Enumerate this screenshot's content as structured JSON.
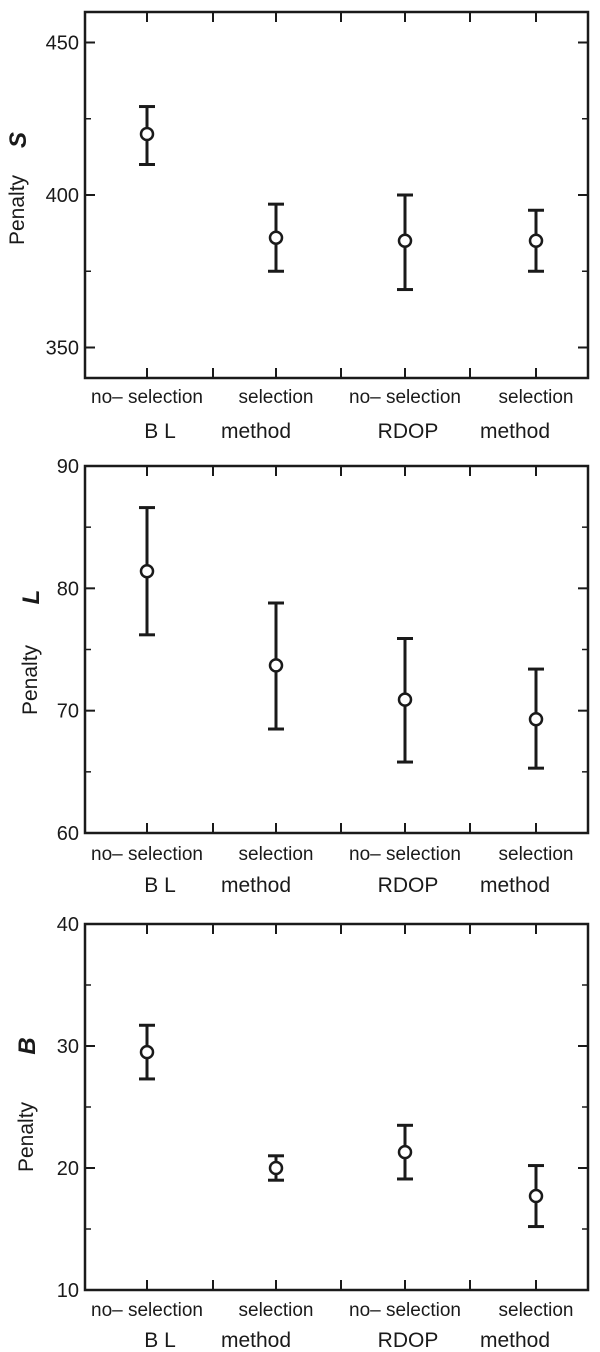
{
  "chart_data": [
    {
      "type": "scatter",
      "ylabel": "Penalty",
      "ysymbol": "S",
      "ylim": [
        340,
        460
      ],
      "yticks": [
        350,
        400,
        450
      ],
      "categories": [
        "no– selection",
        "selection",
        "no– selection",
        "selection"
      ],
      "groups": [
        {
          "labels": [
            "B L",
            "method"
          ]
        },
        {
          "labels": [
            "RDOP",
            "method"
          ]
        }
      ],
      "points": [
        {
          "y": 420,
          "low": 410,
          "high": 429
        },
        {
          "y": 386,
          "low": 375,
          "high": 397
        },
        {
          "y": 385,
          "low": 369,
          "high": 400
        },
        {
          "y": 385,
          "low": 375,
          "high": 395
        }
      ],
      "grid": false
    },
    {
      "type": "scatter",
      "ylabel": "Penalty",
      "ysymbol": "L",
      "ylim": [
        60,
        90
      ],
      "yticks": [
        60,
        70,
        80,
        90
      ],
      "categories": [
        "no– selection",
        "selection",
        "no– selection",
        "selection"
      ],
      "groups": [
        {
          "labels": [
            "B L",
            "method"
          ]
        },
        {
          "labels": [
            "RDOP",
            "method"
          ]
        }
      ],
      "points": [
        {
          "y": 81.4,
          "low": 76.2,
          "high": 86.6
        },
        {
          "y": 73.7,
          "low": 68.5,
          "high": 78.8
        },
        {
          "y": 70.9,
          "low": 65.8,
          "high": 75.9
        },
        {
          "y": 69.3,
          "low": 65.3,
          "high": 73.4
        }
      ],
      "grid": false
    },
    {
      "type": "scatter",
      "ylabel": "Penalty",
      "ysymbol": "B",
      "ylim": [
        10,
        40
      ],
      "yticks": [
        10,
        20,
        30,
        40
      ],
      "categories": [
        "no– selection",
        "selection",
        "no– selection",
        "selection"
      ],
      "groups": [
        {
          "labels": [
            "B L",
            "method"
          ]
        },
        {
          "labels": [
            "RDOP",
            "method"
          ]
        }
      ],
      "points": [
        {
          "y": 29.5,
          "low": 27.3,
          "high": 31.7
        },
        {
          "y": 20.0,
          "low": 19.0,
          "high": 21.0
        },
        {
          "y": 21.3,
          "low": 19.1,
          "high": 23.5
        },
        {
          "y": 17.7,
          "low": 15.2,
          "high": 20.2
        }
      ],
      "grid": false
    }
  ]
}
